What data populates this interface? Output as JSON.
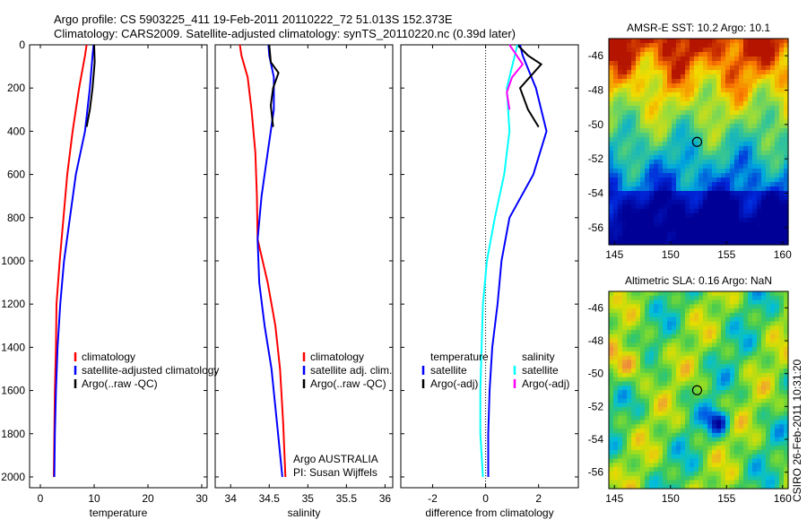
{
  "title_line1": "Argo profile: CS 5903225_411 19-Feb-2011 20110222_72 51.013S 152.373E",
  "title_line2": "Climatology: CARS2009. Satellite-adjusted climatology: synTS_20110220.nc (0.39d later)",
  "side_stamp": "CSIRO 26-Feb-2011 10:31:20",
  "colors": {
    "climatology": "#ff0000",
    "satellite": "#0000ff",
    "argo": "#000000",
    "sat_salinity": "#00ffff",
    "argo_salinity": "#ff00ff"
  },
  "chart_data": [
    {
      "type": "line",
      "xlabel": "temperature",
      "ylabel": "",
      "xlim": [
        -2,
        31
      ],
      "ylim": [
        2050,
        0
      ],
      "xticks": [
        "0",
        "10",
        "20",
        "30"
      ],
      "xtick_values": [
        0,
        10,
        20,
        30
      ],
      "yticks": [
        "0",
        "200",
        "400",
        "600",
        "800",
        "1000",
        "1200",
        "1400",
        "1600",
        "1800",
        "2000"
      ],
      "ytick_values": [
        0,
        200,
        400,
        600,
        800,
        1000,
        1200,
        1400,
        1600,
        1800,
        2000
      ],
      "legend": [
        "climatology",
        "satellite-adjusted climatology",
        "Argo(..raw -QC)"
      ],
      "series": [
        {
          "name": "climatology",
          "color": "#ff0000",
          "x": [
            8.6,
            8.3,
            7.2,
            6.0,
            5.0,
            4.3,
            3.6,
            3.0,
            2.9,
            2.7,
            2.6,
            2.5
          ],
          "y": [
            0,
            50,
            200,
            400,
            600,
            800,
            1000,
            1200,
            1400,
            1600,
            1800,
            2000
          ]
        },
        {
          "name": "satellite-adjusted climatology",
          "color": "#0000ff",
          "x": [
            9.9,
            9.7,
            9.2,
            8.3,
            6.6,
            5.5,
            4.4,
            3.7,
            3.2,
            2.9,
            2.7,
            2.6
          ],
          "y": [
            0,
            50,
            200,
            400,
            600,
            800,
            1000,
            1200,
            1400,
            1600,
            1800,
            2000
          ]
        },
        {
          "name": "Argo(..raw -QC)",
          "color": "#000000",
          "x": [
            10.0,
            10.1,
            9.7,
            9.2,
            8.6
          ],
          "y": [
            0,
            80,
            200,
            300,
            380
          ]
        }
      ]
    },
    {
      "type": "line",
      "xlabel": "salinity",
      "xlim": [
        33.8,
        36.1
      ],
      "ylim": [
        2050,
        0
      ],
      "xticks": [
        "34",
        "34.5",
        "35",
        "35.5",
        "36"
      ],
      "xtick_values": [
        34,
        34.5,
        35,
        35.5,
        36
      ],
      "legend": [
        "climatology",
        "satellite adj. clim.",
        "Argo(..raw -QC)"
      ],
      "annotation_line1": "Argo AUSTRALIA",
      "annotation_line2": "PI: Susan Wijffels",
      "series": [
        {
          "name": "climatology",
          "color": "#ff0000",
          "x": [
            34.12,
            34.14,
            34.22,
            34.27,
            34.32,
            34.34,
            34.35,
            34.48,
            34.58,
            34.64,
            34.68,
            34.71
          ],
          "y": [
            0,
            50,
            150,
            300,
            500,
            700,
            900,
            1100,
            1300,
            1500,
            1750,
            2000
          ]
        },
        {
          "name": "satellite adj. clim.",
          "color": "#0000ff",
          "x": [
            34.49,
            34.5,
            34.56,
            34.56,
            34.48,
            34.4,
            34.35,
            34.37,
            34.44,
            34.53,
            34.6,
            34.67
          ],
          "y": [
            0,
            50,
            150,
            300,
            500,
            700,
            900,
            1100,
            1300,
            1500,
            1750,
            2000
          ]
        },
        {
          "name": "Argo(..raw -QC)",
          "color": "#000000",
          "x": [
            34.5,
            34.52,
            34.62,
            34.55,
            34.52,
            34.55
          ],
          "y": [
            0,
            80,
            130,
            200,
            280,
            380
          ]
        }
      ]
    },
    {
      "type": "line",
      "xlabel": "difference from climatology",
      "xlim": [
        -3.2,
        3.5
      ],
      "ylim": [
        2050,
        0
      ],
      "xticks": [
        "-2",
        "0",
        "2"
      ],
      "xtick_values": [
        -2,
        0,
        2
      ],
      "legend_headers": [
        "temperature",
        "salinity"
      ],
      "legend_temperature": [
        "satellite",
        "Argo(-adj)"
      ],
      "legend_salinity": [
        "satellite",
        "Argo(-adj)"
      ],
      "series": [
        {
          "name": "temperature satellite",
          "color": "#0000ff",
          "x": [
            1.3,
            1.4,
            1.9,
            2.3,
            1.8,
            0.9,
            0.6,
            0.45,
            0.25,
            0.15,
            0.1,
            0.1
          ],
          "y": [
            0,
            50,
            200,
            400,
            600,
            800,
            1000,
            1200,
            1400,
            1600,
            1800,
            2000
          ]
        },
        {
          "name": "temperature Argo(-adj)",
          "color": "#000000",
          "x": [
            1.2,
            1.6,
            2.1,
            1.3,
            1.6,
            2.0
          ],
          "y": [
            0,
            50,
            90,
            200,
            300,
            380
          ]
        },
        {
          "name": "salinity satellite",
          "color": "#00ffff",
          "x": [
            1.2,
            1.1,
            0.8,
            0.9,
            0.7,
            0.35,
            0.05,
            -0.1,
            -0.15,
            -0.2,
            -0.2,
            -0.1
          ],
          "y": [
            0,
            50,
            200,
            400,
            600,
            800,
            1000,
            1200,
            1400,
            1600,
            1800,
            2000
          ]
        },
        {
          "name": "salinity Argo(-adj)",
          "color": "#ff00ff",
          "x": [
            0.9,
            1.4,
            1.0,
            0.8,
            0.9
          ],
          "y": [
            0,
            90,
            150,
            220,
            300
          ]
        }
      ]
    },
    {
      "type": "heatmap",
      "title": "AMSR-E SST: 10.2 Argo: 10.1",
      "xlim": [
        144.5,
        160.5
      ],
      "ylim": [
        -57,
        -45
      ],
      "xticks": [
        "145",
        "150",
        "155",
        "160"
      ],
      "xtick_values": [
        145,
        150,
        155,
        160
      ],
      "yticks": [
        "-46",
        "-48",
        "-50",
        "-52",
        "-54",
        "-56"
      ],
      "ytick_values": [
        -46,
        -48,
        -50,
        -52,
        -54,
        -56
      ],
      "marker": {
        "lon": 152.373,
        "lat": -51.013
      }
    },
    {
      "type": "heatmap",
      "title": "Altimetric SLA: 0.16 Argo: NaN",
      "xlim": [
        144.5,
        160.5
      ],
      "ylim": [
        -57,
        -45
      ],
      "xticks": [
        "145",
        "150",
        "155",
        "160"
      ],
      "xtick_values": [
        145,
        150,
        155,
        160
      ],
      "yticks": [
        "-46",
        "-48",
        "-50",
        "-52",
        "-54",
        "-56"
      ],
      "ytick_values": [
        -46,
        -48,
        -50,
        -52,
        -54,
        -56
      ],
      "marker": {
        "lon": 152.373,
        "lat": -51.013
      }
    }
  ]
}
